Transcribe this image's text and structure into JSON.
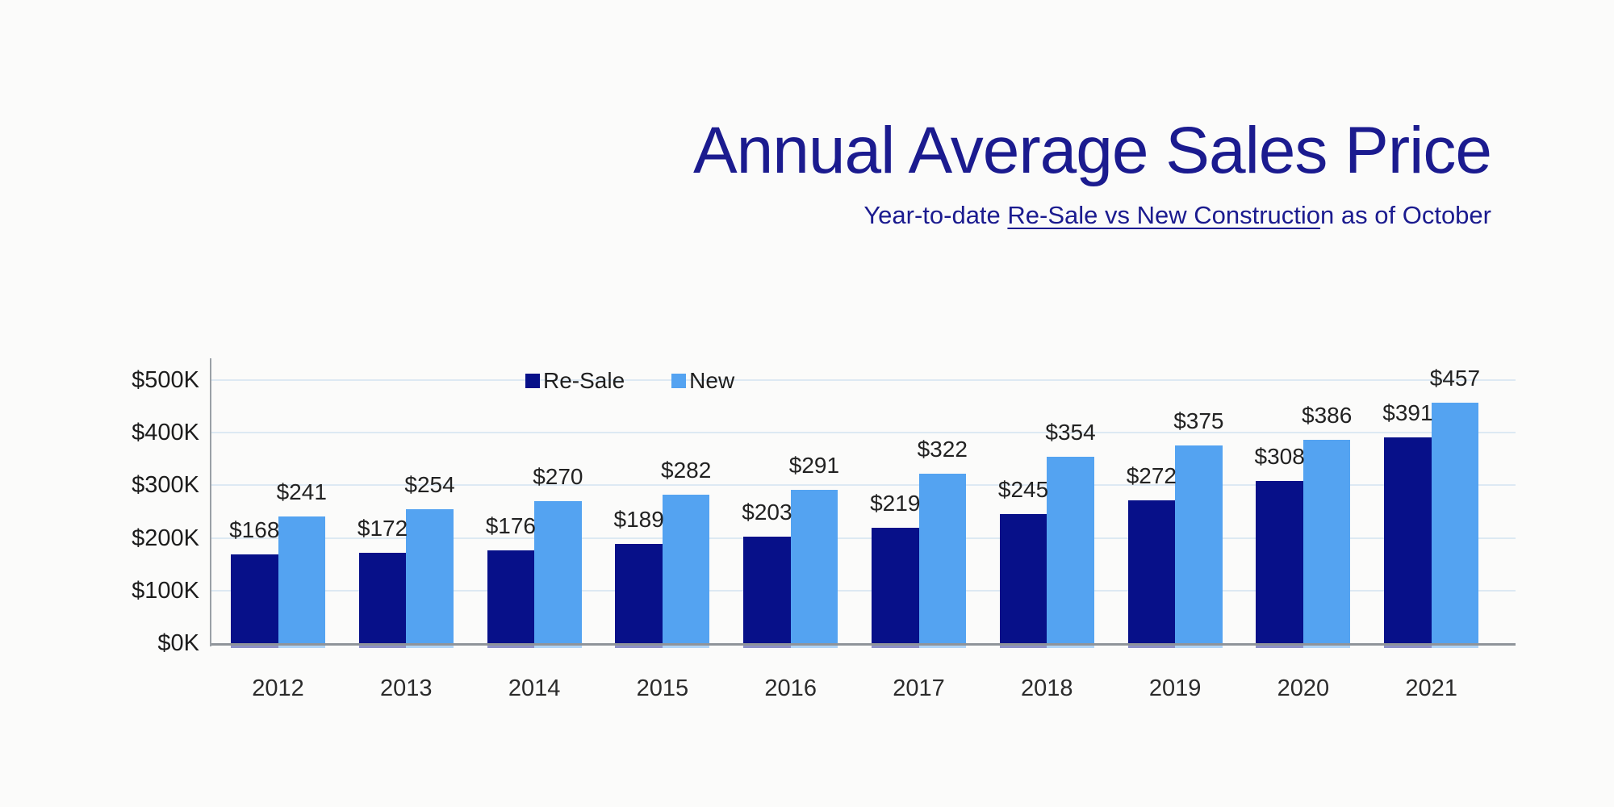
{
  "header": {
    "title": "Annual Average Sales Price",
    "subtitle_pre": "Year-to-date ",
    "subtitle_underlined": "Re-Sale vs New Constructio",
    "subtitle_post": "n as of October",
    "title_color": "#1b1b8f"
  },
  "chart_data": {
    "type": "bar",
    "title": "Annual Average Sales Price",
    "subtitle": "Year-to-date Re-Sale vs New Construction as of October",
    "categories": [
      "2012",
      "2013",
      "2014",
      "2015",
      "2016",
      "2017",
      "2018",
      "2019",
      "2020",
      "2021"
    ],
    "series": [
      {
        "name": "Re-Sale",
        "color": "#071089",
        "values": [
          168,
          172,
          176,
          189,
          203,
          219,
          245,
          272,
          308,
          391
        ]
      },
      {
        "name": "New",
        "color": "#54a3f1",
        "values": [
          241,
          254,
          270,
          282,
          291,
          322,
          354,
          375,
          386,
          457
        ]
      }
    ],
    "value_prefix": "$",
    "value_unit": "K",
    "ylim": [
      0,
      500
    ],
    "yticks": [
      500,
      400,
      300,
      200,
      100,
      0
    ],
    "ytick_labels": [
      "$500K",
      "$400K",
      "$300K",
      "$200K",
      "$100K",
      "$0K"
    ],
    "grid": "horizontal",
    "legend_position": "inside-top-left",
    "colors": {
      "gridline": "#dde9f3",
      "axis_line": "#9aa0a6",
      "baseline": "#8f949a",
      "value_label": "#222222",
      "tick_label": "#1c1c1c"
    }
  }
}
